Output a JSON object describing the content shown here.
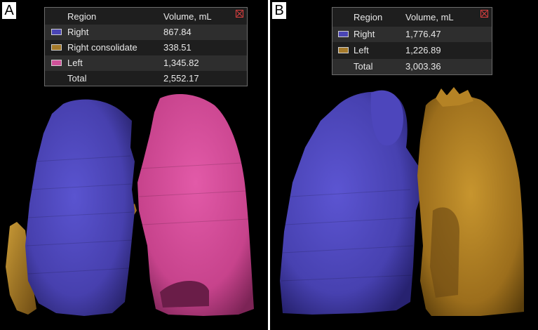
{
  "colors": {
    "background": "#000000",
    "right_lung": "#4d46b8",
    "right_consolidate": "#a5781e",
    "left_lung_a": "#cc4a90",
    "left_lung_b": "#a8781e"
  },
  "panel_a": {
    "letter": "A",
    "table": {
      "header": {
        "region": "Region",
        "volume": "Volume, mL"
      },
      "rows": [
        {
          "region": "Right",
          "volume": "867.84",
          "swatch": "#4a45b5"
        },
        {
          "region": "Right consolidate",
          "volume": "338.51",
          "swatch": "#a57a2a"
        },
        {
          "region": "Left",
          "volume": "1,345.82",
          "swatch": "#d0529a"
        }
      ],
      "total": {
        "region": "Total",
        "volume": "2,552.17"
      }
    }
  },
  "panel_b": {
    "letter": "B",
    "table": {
      "header": {
        "region": "Region",
        "volume": "Volume, mL"
      },
      "rows": [
        {
          "region": "Right",
          "volume": "1,776.47",
          "swatch": "#4a45b5"
        },
        {
          "region": "Left",
          "volume": "1,226.89",
          "swatch": "#a57a2a"
        }
      ],
      "total": {
        "region": "Total",
        "volume": "3,003.36"
      }
    }
  }
}
